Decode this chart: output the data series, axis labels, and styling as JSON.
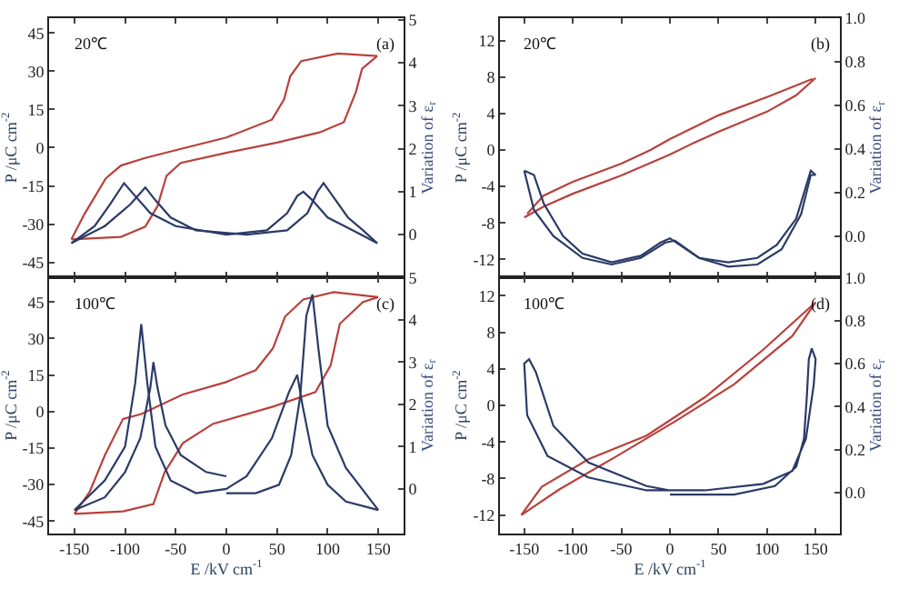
{
  "chart_data": [
    {
      "type": "line",
      "ylabel": "P /μC cm$^{-2}$",
      "y2label": "Variation of ε$_{r}$",
      "annotations": [
        "20℃",
        "(a)"
      ],
      "tick_labels": "y",
      "xlim": [
        -175,
        175
      ],
      "xticks": [
        -150,
        -100,
        -50,
        0,
        50,
        100,
        150
      ],
      "ylim": [
        -51,
        51
      ],
      "yticks": [
        -45,
        -30,
        -15,
        0,
        15,
        30,
        45
      ],
      "y2lim": [
        -1,
        5.05
      ],
      "y2ticks": [
        0,
        1,
        2,
        3,
        4,
        5
      ],
      "series": [
        {
          "color": "#b8413c",
          "x": [
            -153,
            -104,
            -80,
            -68,
            -59,
            -45,
            0,
            50,
            92,
            116,
            128,
            134,
            149
          ],
          "values": [
            -36,
            -35,
            -31,
            -23,
            -11,
            -6,
            -2,
            2,
            6,
            10,
            22,
            31,
            36
          ]
        },
        {
          "color": "#b8413c",
          "x": [
            -153,
            -140,
            -119,
            -104,
            -80,
            -50,
            0,
            45,
            57,
            63,
            74,
            110,
            149
          ],
          "values": [
            -36,
            -26,
            -12,
            -7,
            -4,
            -1,
            4,
            11,
            19,
            28,
            34,
            37,
            36
          ]
        },
        {
          "color": "#2b3a67",
          "axis": "y2",
          "x": [
            -153,
            -130,
            -115,
            -101,
            -90,
            -75,
            -50,
            0,
            40,
            60,
            70,
            76,
            85,
            100,
            125,
            149
          ],
          "values": [
            -0.2,
            0.2,
            0.7,
            1.2,
            0.9,
            0.5,
            0.2,
            0.0,
            0.1,
            0.5,
            0.9,
            1.0,
            0.8,
            0.4,
            0.1,
            -0.2
          ]
        },
        {
          "color": "#2b3a67",
          "axis": "y2",
          "x": [
            -153,
            -120,
            -95,
            -80,
            -70,
            -55,
            -30,
            20,
            60,
            80,
            90,
            96,
            105,
            120,
            135,
            149
          ],
          "values": [
            -0.2,
            0.2,
            0.7,
            1.1,
            0.8,
            0.4,
            0.1,
            0.0,
            0.1,
            0.5,
            1.0,
            1.2,
            0.9,
            0.4,
            0.1,
            -0.2
          ]
        }
      ]
    },
    {
      "type": "line",
      "ylabel": "P /μC cm$^{-2}$",
      "y2label": "Variation of ε$_{r}$",
      "annotations": [
        "20℃",
        "(b)"
      ],
      "tick_labels": "y",
      "xlim": [
        -175,
        175
      ],
      "xticks": [
        -150,
        -100,
        -50,
        0,
        50,
        100,
        150
      ],
      "ylim": [
        -14,
        14.5
      ],
      "yticks": [
        -12,
        -8,
        -4,
        0,
        4,
        8,
        12
      ],
      "y2lim": [
        -0.19,
        1.0
      ],
      "y2ticks": [
        {
          "value": 0,
          "label": "0.0"
        },
        {
          "value": 0.2,
          "label": "0.2"
        },
        {
          "value": 0.4,
          "label": "0.4"
        },
        {
          "value": 0.6,
          "label": "0.6"
        },
        {
          "value": 0.8,
          "label": "0.8"
        },
        {
          "value": 1.0,
          "label": "1.0"
        }
      ],
      "series": [
        {
          "color": "#b8413c",
          "x": [
            -150,
            -130,
            -100,
            -50,
            0,
            25,
            50,
            100,
            130,
            150
          ],
          "values": [
            -7.4,
            -6.2,
            -4.8,
            -2.8,
            -0.5,
            0.8,
            2.0,
            4.2,
            6.0,
            7.9
          ]
        },
        {
          "color": "#b8413c",
          "x": [
            -147,
            -130,
            -100,
            -50,
            -20,
            0,
            50,
            100,
            147
          ],
          "values": [
            -7.0,
            -5.0,
            -3.5,
            -1.5,
            0.0,
            1.2,
            3.8,
            5.8,
            7.8
          ]
        },
        {
          "color": "#2b3a67",
          "axis": "y2",
          "x": [
            -150,
            -140,
            -130,
            -110,
            -90,
            -60,
            -30,
            -10,
            0,
            10,
            30,
            60,
            90,
            110,
            130,
            145,
            150
          ],
          "values": [
            0.3,
            0.28,
            0.15,
            0.0,
            -0.08,
            -0.12,
            -0.09,
            -0.03,
            -0.01,
            -0.04,
            -0.1,
            -0.12,
            -0.1,
            -0.04,
            0.08,
            0.3,
            0.28
          ]
        },
        {
          "color": "#2b3a67",
          "axis": "y2",
          "x": [
            -150,
            -140,
            -120,
            -90,
            -60,
            -30,
            -5,
            5,
            30,
            60,
            90,
            115,
            135,
            145,
            150
          ],
          "values": [
            0.3,
            0.12,
            0.0,
            -0.1,
            -0.13,
            -0.1,
            -0.03,
            -0.02,
            -0.1,
            -0.14,
            -0.13,
            -0.06,
            0.1,
            0.28,
            0.28
          ]
        }
      ]
    },
    {
      "type": "line",
      "xlabel": "E /kV cm$^{-1}$",
      "ylabel": "P /μC cm$^{-2}$",
      "y2label": "Variation of ε$_{r}$",
      "annotations": [
        "100℃",
        "(c)"
      ],
      "xlim": [
        -175,
        175
      ],
      "xticks": [
        -150,
        -100,
        -50,
        0,
        50,
        100,
        150
      ],
      "ylim": [
        -50,
        55
      ],
      "yticks": [
        -45,
        -30,
        -15,
        0,
        15,
        30,
        45
      ],
      "y2lim": [
        -1.05,
        5.0
      ],
      "y2ticks": [
        0,
        1,
        2,
        3,
        4,
        5
      ],
      "series": [
        {
          "color": "#b8413c",
          "x": [
            -150,
            -102,
            -72,
            -61,
            -43,
            -13,
            46,
            88,
            103,
            112,
            135,
            150
          ],
          "values": [
            -42,
            -41,
            -38,
            -25,
            -13,
            -5,
            2,
            8,
            19,
            36,
            45,
            47
          ]
        },
        {
          "color": "#b8413c",
          "x": [
            -150,
            -135,
            -120,
            -102,
            -84,
            -43,
            -1,
            29,
            46,
            58,
            76,
            106,
            150
          ],
          "values": [
            -42,
            -33,
            -18,
            -3,
            -1,
            7,
            12,
            17,
            26,
            39,
            46,
            49,
            47
          ]
        },
        {
          "color": "#2b3a67",
          "axis": "y2",
          "x": [
            0,
            29,
            52,
            64,
            73,
            79,
            85,
            91,
            100,
            118,
            150
          ],
          "values": [
            -0.1,
            -0.1,
            0.1,
            0.8,
            2.2,
            4.1,
            4.6,
            3.3,
            1.5,
            0.5,
            -0.5
          ]
        },
        {
          "color": "#2b3a67",
          "axis": "y2",
          "x": [
            -150,
            -120,
            -100,
            -90,
            -84,
            -78,
            -70,
            -55,
            -30,
            0,
            20,
            45,
            62,
            70,
            75,
            85,
            100,
            118,
            150
          ],
          "values": [
            -0.5,
            0.2,
            1.0,
            2.5,
            3.9,
            2.5,
            1.0,
            0.2,
            -0.1,
            0.0,
            0.3,
            1.2,
            2.3,
            2.7,
            2.0,
            0.8,
            0.1,
            -0.3,
            -0.5
          ]
        },
        {
          "color": "#2b3a67",
          "axis": "y2",
          "x": [
            -150,
            -120,
            -100,
            -85,
            -75,
            -72,
            -68,
            -60,
            -45,
            -20,
            0
          ],
          "values": [
            -0.5,
            -0.2,
            0.4,
            1.2,
            2.4,
            3.0,
            2.4,
            1.5,
            0.8,
            0.4,
            0.3
          ]
        }
      ]
    },
    {
      "type": "line",
      "xlabel": "E /kV cm$^{-1}$",
      "ylabel": "P /μC cm$^{-2}$",
      "y2label": "Variation of ε$_{r}$",
      "annotations": [
        "100℃",
        "(d)"
      ],
      "xlim": [
        -175,
        175
      ],
      "xticks": [
        -150,
        -100,
        -50,
        0,
        50,
        100,
        150
      ],
      "ylim": [
        -14,
        14
      ],
      "yticks": [
        -12,
        -8,
        -4,
        0,
        4,
        8,
        12
      ],
      "y2lim": [
        -0.19,
        1.0
      ],
      "y2ticks": [
        {
          "value": 0,
          "label": "0.0"
        },
        {
          "value": 0.2,
          "label": "0.2"
        },
        {
          "value": 0.4,
          "label": "0.4"
        },
        {
          "value": 0.6,
          "label": "0.6"
        },
        {
          "value": 0.8,
          "label": "0.8"
        },
        {
          "value": 1.0,
          "label": "1.0"
        }
      ],
      "series": [
        {
          "color": "#b8413c",
          "x": [
            -153,
            -114,
            -54,
            6,
            66,
            126,
            150
          ],
          "values": [
            -12.0,
            -9.2,
            -5.5,
            -1.7,
            2.3,
            7.6,
            11.3
          ]
        },
        {
          "color": "#b8413c",
          "x": [
            -153,
            -132,
            -84,
            -24,
            36,
            96,
            150
          ],
          "values": [
            -12.0,
            -8.9,
            -5.9,
            -3.3,
            0.9,
            6.1,
            11.3
          ]
        },
        {
          "color": "#2b3a67",
          "axis": "y2",
          "x": [
            0,
            66,
            108,
            130,
            138,
            141,
            143,
            146,
            150,
            148,
            140,
            126,
            96,
            36,
            -24,
            -84,
            -126,
            -147,
            -150,
            -145,
            -138,
            -120,
            -84,
            -24,
            0
          ],
          "values": [
            -0.01,
            -0.01,
            0.03,
            0.12,
            0.25,
            0.45,
            0.62,
            0.67,
            0.62,
            0.5,
            0.25,
            0.1,
            0.04,
            0.01,
            0.01,
            0.07,
            0.17,
            0.36,
            0.6,
            0.62,
            0.56,
            0.31,
            0.14,
            0.03,
            0.01
          ]
        }
      ]
    }
  ]
}
